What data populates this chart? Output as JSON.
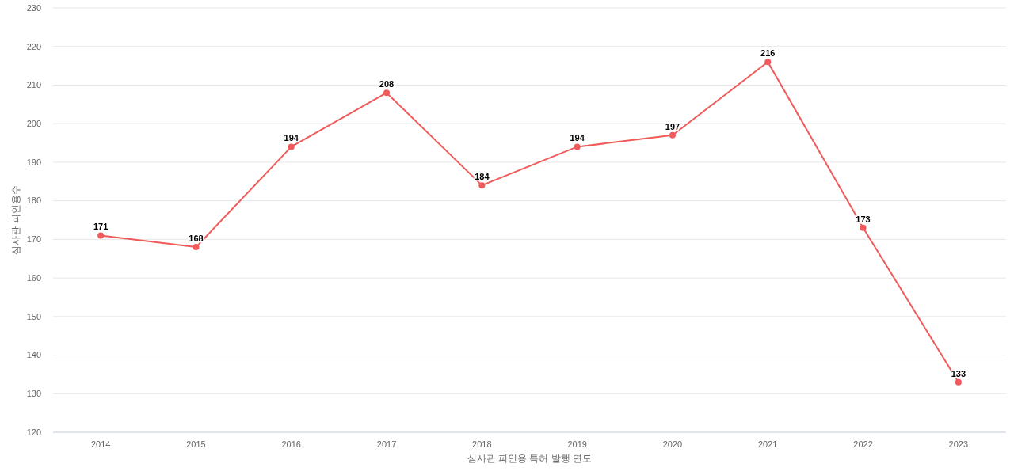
{
  "chart_data": {
    "type": "line",
    "xlabel": "심사관 피인용 특허 발행 연도",
    "ylabel": "심사관 피인용수",
    "categories": [
      "2014",
      "2015",
      "2016",
      "2017",
      "2018",
      "2019",
      "2020",
      "2021",
      "2022",
      "2023"
    ],
    "series": [
      {
        "color": "#f05a5a",
        "values": [
          171,
          168,
          194,
          208,
          184,
          194,
          197,
          216,
          173,
          133
        ]
      }
    ],
    "ylim": [
      120,
      230
    ],
    "yticks": [
      120,
      130,
      140,
      150,
      160,
      170,
      180,
      190,
      200,
      210,
      220,
      230
    ],
    "grid": "y",
    "marker": "circle",
    "line_style": "solid",
    "data_labels": true
  }
}
